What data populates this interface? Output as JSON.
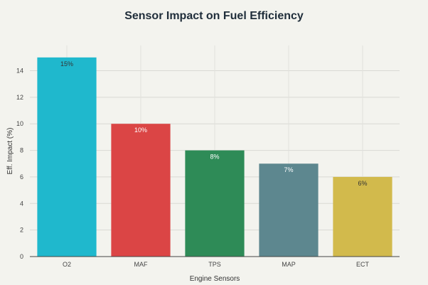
{
  "chart_data": {
    "type": "bar",
    "title": "Sensor Impact on Fuel Efficiency",
    "xlabel": "Engine Sensors",
    "ylabel": "Eff. Impact (%)",
    "categories": [
      "O2",
      "MAF",
      "TPS",
      "MAP",
      "ECT"
    ],
    "values": [
      15,
      10,
      8,
      7,
      6
    ],
    "data_labels": [
      "15%",
      "10%",
      "8%",
      "7%",
      "6%"
    ],
    "colors": [
      "#1fb8cd",
      "#db4545",
      "#2e8b57",
      "#5d878f",
      "#d2ba4c"
    ],
    "label_colors": [
      "#333333",
      "#ffffff",
      "#ffffff",
      "#ffffff",
      "#333333"
    ],
    "ylim": [
      0,
      15.9
    ],
    "yticks": [
      0,
      2,
      4,
      6,
      8,
      10,
      12,
      14
    ],
    "grid": true,
    "legend": "none"
  }
}
